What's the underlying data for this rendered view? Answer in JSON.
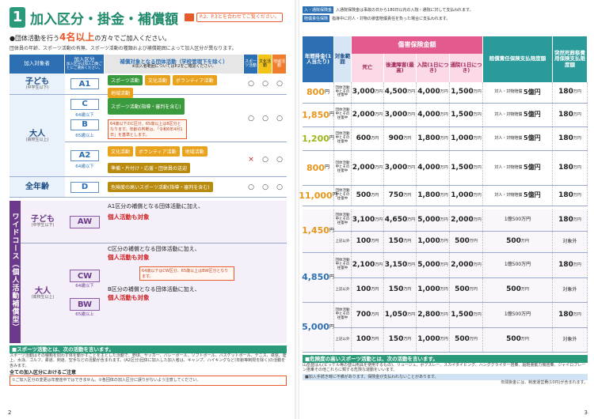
{
  "left": {
    "num": "1",
    "title": "加入区分・掛金・補償額",
    "ref": "P.2、P.3とを合わせてご覧ください。",
    "lead_a": "●団体活動を行う",
    "lead_big": "4名以上",
    "lead_b": "の方々でご加入ください。",
    "sub": "団体員の年齢、スポーツ活動の有無、スポーツ活動の種類および補償範囲によって加入区分が異なります。",
    "th": {
      "target": "加入対象者",
      "kubun": "加入区分",
      "kubun_sub": "加入区分は加入口数ごとにご選択ください。",
      "acts": "補償対象となる団体活動（学校管理下を除く）",
      "acts_sub": "※加入者範囲についてはP.2をご確認ください。",
      "c1": "スポーツ活動",
      "c2": "文化活動",
      "c3": "地域活動"
    },
    "rows": [
      {
        "target": "子ども",
        "tsub": "(中学生以下)",
        "code": "A1",
        "acts": [
          [
            "スポーツ活動",
            "g"
          ],
          [
            "文化活動",
            "o"
          ],
          [
            "ボランティア活動",
            "o"
          ],
          [
            "地域活動",
            "o"
          ]
        ],
        "m": [
          "○",
          "○",
          "○"
        ]
      },
      {
        "target": "大人",
        "tsub": "(高校生以上)",
        "code": "C",
        "csub": "64歳以下",
        "code2": "B",
        "csub2": "65歳以上",
        "acts": [
          [
            "スポーツ活動(指導・審判を含む)",
            "g"
          ]
        ],
        "note": "64歳以下のC区分、65歳以上はB区分となります。年齢の判断は、「令和6年4月1日」を基準とします。",
        "m": [
          "○",
          "○",
          "○"
        ]
      },
      {
        "target": "",
        "code": "A2",
        "csub": "64歳以下",
        "acts": [
          [
            "文化活動",
            "o"
          ],
          [
            "ボランティア活動",
            "o"
          ],
          [
            "地域活動",
            "o"
          ],
          [
            "準備・片付け・応援・団体員の送迎",
            "gd"
          ]
        ],
        "m": [
          "×",
          "○",
          "○"
        ]
      },
      {
        "target": "全年齢",
        "code": "D",
        "acts": [
          [
            "危険度の高いスポーツ活動(指導・審判を含む)",
            "dg"
          ]
        ],
        "m": [
          "○",
          "○",
          "○"
        ]
      }
    ],
    "wide_label": "ワイドコース（個人活動補償型）",
    "wrows": [
      {
        "target": "子ども",
        "tsub": "(中学生以下)",
        "code": "AW",
        "t1": "A1区分の補償となる団体活動に加え、",
        "t2": "個人活動も対象"
      },
      {
        "target": "大人",
        "tsub": "(高校生以上)",
        "code": "CW",
        "csub": "64歳以下",
        "code2": "BW",
        "csub2": "65歳以上",
        "t1": "C区分の補償となる団体活動に加え、",
        "t2": "個人活動も対象",
        "t3": "B区分の補償となる団体活動に加え、",
        "t4": "個人活動も対象",
        "note": "64歳以下はCW区分、65歳以上はBW区分となります。"
      }
    ],
    "foot_hd": "■スポーツ活動とは、次の活動を言います。",
    "foot": "スポーツ活動はその種類を問わず体を動かすことを主とした活動で、野球、サッカー、バレーボール、ソフトボール、バスケットボール、テニス、卓球、陸上、水泳、ゴルフ、柔道、剣道、空手などの活動が含まれます。(A2区分)団体に加入した加入者は、キャンプ、ハイキングなど(年齢等制限を除く)の活動を含みます。",
    "warn": "全ての加入区分におけるご注意",
    "warnbox": "①ご加入区分の変更は年度途中ではできません。②各団体の加入区分に誤りがないよう注意してください。",
    "page": "2"
  },
  "right": {
    "hint1": "入・通院保険金",
    "hint1t": "入通院保険金は事故の日から180日以内の入院・通院に対して支払われます。",
    "hint2": "賠償責任保険",
    "hint2t": "指導中に対人・対物の損害賠償責任を負った場合に支払われます。",
    "heads": {
      "prem": "年間掛金(1人当たり)",
      "scope": "対象範囲",
      "injury": "傷害保険金額",
      "death": "死亡",
      "after": "後遺障害(最高)",
      "hosp": "入院(1日につき)",
      "surg": "手術",
      "outp": "通院(1日につき)",
      "bai": "賠償責任保険支払限度額",
      "tok": "突然死葬祭費用保険支払限度額"
    },
    "rows": [
      {
        "p": "800",
        "u": "円",
        "s": "団体活動中とその往復中",
        "d": "3,000",
        "a": "4,500",
        "h": "4,000",
        "o": "1,500",
        "b1": "対人・対物賠償",
        "b2": "5億円",
        "k": "180"
      },
      {
        "p": "1,850",
        "u": "円",
        "s": "団体活動中とその往復中",
        "d": "2,000",
        "a": "3,000",
        "h": "4,000",
        "o": "1,500",
        "b1": "対人・対物賠償",
        "b2": "5億円",
        "k": "180"
      },
      {
        "p": "1,200",
        "u": "円",
        "s": "団体活動中とその往復中",
        "d": "600",
        "a": "900",
        "h": "1,800",
        "o": "1,000",
        "b1": "対人・対物賠償",
        "b2": "5億円",
        "k": "180"
      },
      {
        "p": "800",
        "u": "円",
        "s": "団体活動中とその往復中",
        "d": "2,000",
        "a": "3,000",
        "h": "4,000",
        "o": "1,500",
        "b1": "対人・対物賠償",
        "b2": "5億円",
        "k": "180"
      },
      {
        "p": "11,000",
        "u": "円",
        "s": "団体活動中とその往復中",
        "d": "500",
        "a": "750",
        "h": "1,800",
        "o": "1,000",
        "b1": "対人・対物賠償",
        "b2": "5億円",
        "k": "180"
      }
    ],
    "wrows": [
      {
        "p": "1,450",
        "u": "円",
        "r1": {
          "s": "団体活動中とその往復中",
          "d": "3,100",
          "a": "4,650",
          "h": "5,000",
          "o": "2,000",
          "b": "1億500万円",
          "k": "180"
        },
        "r2": {
          "s": "上記以外",
          "d": "100",
          "a": "150",
          "h": "1,000",
          "o": "500",
          "b": "500",
          "k": "対象外"
        }
      },
      {
        "p": "4,850",
        "u": "円",
        "r1": {
          "s": "団体活動中とその往復中",
          "d": "2,100",
          "a": "3,150",
          "h": "5,000",
          "o": "2,000",
          "b": "1億500万円",
          "k": "180"
        },
        "r2": {
          "s": "上記以外",
          "d": "100",
          "a": "150",
          "h": "1,000",
          "o": "500",
          "b": "500",
          "k": "対象外"
        }
      },
      {
        "p": "5,000",
        "u": "円",
        "r1": {
          "s": "団体活動中とその往復中",
          "d": "700",
          "a": "1,050",
          "h": "2,800",
          "o": "1,500",
          "b": "1億500万円",
          "k": "180"
        },
        "r2": {
          "s": "上記以外",
          "d": "100",
          "a": "150",
          "h": "1,000",
          "o": "500",
          "b": "500",
          "k": "対象外"
        }
      }
    ],
    "man": "万円",
    "en": "円",
    "foot_hd": "■危険度の高いスポーツ活動とは、次の活動を言います。",
    "foot": "山岳登はん(ピッケル等の登山用具を使用するもの)、リュージュ、ボブスレー、スカイダイビング、ハンググライダー搭乗、超軽量動力機搭乗、ジャイロプレーン搭乗その他これらに類する危険な運動をいいます。",
    "foot2": "■加入手続き時に不備があります。保険金が支払われないことがあります。",
    "foot3": "年間掛金には、制度運営費(10円)が含まれます。",
    "page": "3"
  }
}
